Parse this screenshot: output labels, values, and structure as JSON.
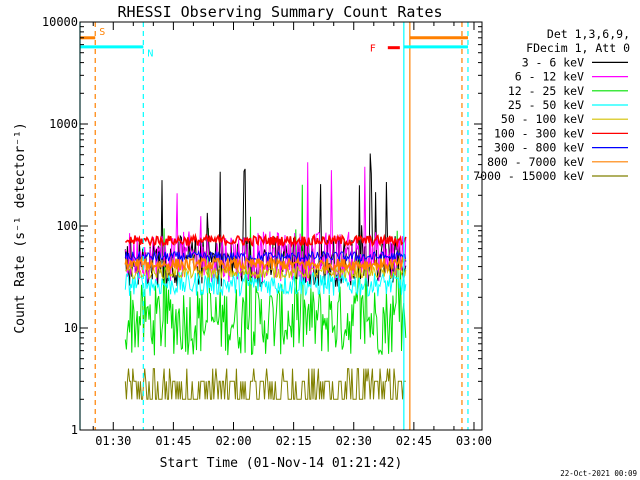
{
  "chart_data": {
    "type": "line",
    "title": "RHESSI Observing Summary Count Rates",
    "xlabel": "Start Time (01-Nov-14 01:21:42)",
    "ylabel": "Count Rate (s⁻¹ detector⁻¹)",
    "yscale": "log",
    "ylim": [
      1,
      10000
    ],
    "xlim": [
      "01:21:42",
      "03:02:00"
    ],
    "x_ticks": [
      "01:30",
      "01:45",
      "02:00",
      "02:15",
      "02:30",
      "02:45",
      "03:00"
    ],
    "y_ticks": [
      "1",
      "10",
      "100",
      "1000",
      "10000"
    ],
    "legend_placement": "top-right",
    "legend_header": [
      "Det 1,3,6,9,",
      "FDecim 1, Att 0"
    ],
    "data_window": [
      "01:33:00",
      "02:43:00"
    ],
    "series": [
      {
        "name": "3 - 6 keV",
        "color": "#000000",
        "level": 45,
        "spread": 0.25
      },
      {
        "name": "6 - 12 keV",
        "color": "#ff00ff",
        "level": 50,
        "spread": 0.25
      },
      {
        "name": "12 - 25 keV",
        "color": "#00e000",
        "level": 12,
        "spread": 0.35
      },
      {
        "name": "25 - 50 keV",
        "color": "#00ffff",
        "level": 27,
        "spread": 0.12
      },
      {
        "name": "50 - 100 keV",
        "color": "#d4c000",
        "level": 35,
        "spread": 0.06
      },
      {
        "name": "100 - 300 keV",
        "color": "#ff0000",
        "level": 72,
        "spread": 0.05
      },
      {
        "name": "300 - 800 keV",
        "color": "#0000ff",
        "level": 50,
        "spread": 0.05
      },
      {
        "name": "800 - 7000 keV",
        "color": "#ff8000",
        "level": 42,
        "spread": 0.06
      },
      {
        "name": "7000 - 15000 keV",
        "color": "#808000",
        "level": 2.5,
        "spread": 0.2
      }
    ],
    "annotations": [
      {
        "label": "S",
        "color": "#ff8000",
        "time": "01:25:30"
      },
      {
        "label": "N",
        "color": "#00ffff",
        "time": "01:37:30"
      },
      {
        "label": "F",
        "color": "#ff0000",
        "time": "02:37:00"
      }
    ],
    "flags": [
      {
        "name": "night-start",
        "color": "#00ffff",
        "start": "01:21:42",
        "end": "01:37:30",
        "value": 5700
      },
      {
        "name": "saa-start",
        "color": "#ff8000",
        "start": "01:21:42",
        "end": "01:25:30",
        "value": 7000
      },
      {
        "name": "night-end",
        "color": "#00ffff",
        "start": "02:42:30",
        "end": "02:58:30",
        "value": 5700
      },
      {
        "name": "saa-end",
        "color": "#ff8000",
        "start": "02:44:00",
        "end": "02:58:30",
        "value": 7000
      },
      {
        "name": "flare",
        "color": "#ff0000",
        "start": "02:38:30",
        "end": "02:41:30",
        "value": 5600
      }
    ],
    "vlines": [
      {
        "name": "night-begin-line",
        "color": "#00ffff",
        "time": "01:21:42",
        "style": "solid"
      },
      {
        "name": "saa-begin-line",
        "color": "#ff8000",
        "time": "01:25:30",
        "style": "dashed"
      },
      {
        "name": "night-end-line",
        "color": "#00ffff",
        "time": "01:37:30",
        "style": "dashed"
      },
      {
        "name": "night2-begin-line",
        "color": "#00ffff",
        "time": "02:42:30",
        "style": "solid"
      },
      {
        "name": "saa2-begin-line",
        "color": "#ff8000",
        "time": "02:44:00",
        "style": "solid"
      },
      {
        "name": "night2-end-line",
        "color": "#00ffff",
        "time": "02:58:30",
        "style": "dashed"
      },
      {
        "name": "saa2-end-line",
        "color": "#ff8000",
        "time": "02:57:00",
        "style": "dashed"
      }
    ]
  },
  "footer": {
    "timestamp": "22-Oct-2021 00:09"
  }
}
